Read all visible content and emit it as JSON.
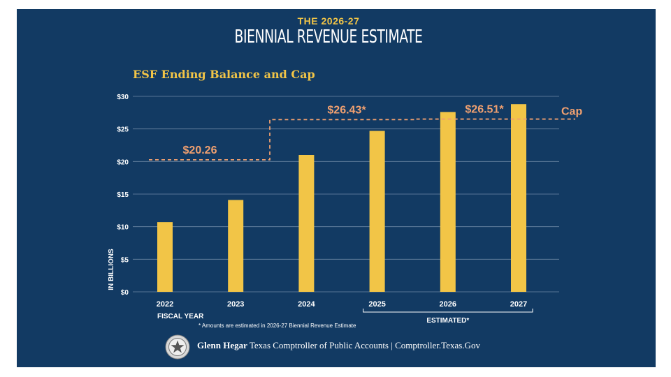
{
  "header": {
    "kicker": "THE 2026-27",
    "headline": "BIENNIAL REVENUE ESTIMATE"
  },
  "chart_data": {
    "type": "bar",
    "title": "ESF Ending Balance and Cap",
    "categories": [
      "2022",
      "2023",
      "2024",
      "2025",
      "2026",
      "2027"
    ],
    "values": [
      10.7,
      14.1,
      21.0,
      24.7,
      27.6,
      28.8
    ],
    "ylim": [
      0,
      30
    ],
    "yticks": [
      0,
      5,
      10,
      15,
      20,
      25,
      30
    ],
    "ytick_labels": [
      "$0",
      "$5",
      "$10",
      "$15",
      "$20",
      "$25",
      "$30"
    ],
    "ylabel": "IN BILLIONS",
    "xlabel": "FISCAL YEAR",
    "bar_color": "#f2c547",
    "grid": true,
    "cap_series": {
      "name": "Cap",
      "color": "#f0a070",
      "segments": [
        {
          "from": "2022",
          "to": "2023",
          "value": 20.26,
          "label": "$20.26"
        },
        {
          "from": "2024",
          "to": "2025",
          "value": 26.43,
          "label": "$26.43*"
        },
        {
          "from": "2026",
          "to": "2027",
          "value": 26.51,
          "label": "$26.51*"
        }
      ]
    },
    "estimated_group": {
      "from": "2025",
      "to": "2027",
      "label": "ESTIMATED*"
    },
    "footnote": "* Amounts are estimated in 2026-27 Biennial Revenue Estimate"
  },
  "footer": {
    "name": "Glenn Hegar",
    "rest": " Texas Comptroller of Public Accounts | Comptroller.Texas.Gov"
  }
}
